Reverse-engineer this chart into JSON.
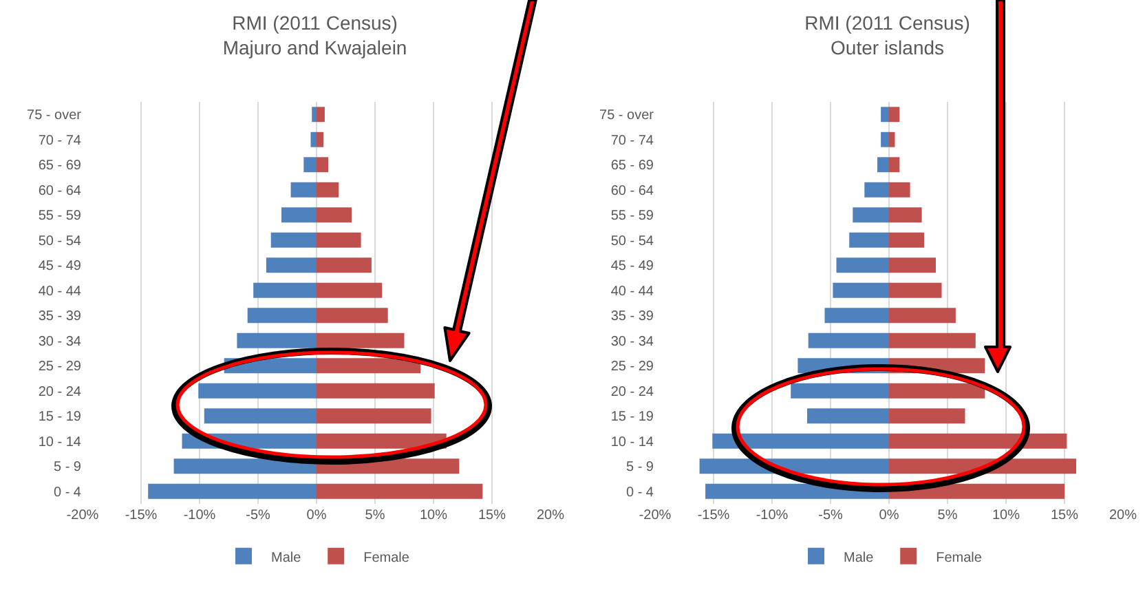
{
  "chart_data": [
    {
      "type": "bar",
      "orientation": "horizontal",
      "title": "RMI (2011 Census)",
      "subtitle": "Majuro and Kwajalein",
      "categories": [
        "75 - over",
        "70 - 74",
        "65 - 69",
        "60 - 64",
        "55 - 59",
        "50 - 54",
        "45 - 49",
        "40 - 44",
        "35 - 39",
        "30 - 34",
        "25 - 29",
        "20 - 24",
        "15 - 19",
        "10 - 14",
        "5 - 9",
        "0 - 4"
      ],
      "series": [
        {
          "name": "Male",
          "color": "#4f81bd",
          "values": [
            -0.4,
            -0.5,
            -1.1,
            -2.2,
            -3.0,
            -3.9,
            -4.3,
            -5.4,
            -5.9,
            -6.8,
            -7.9,
            -10.1,
            -9.6,
            -11.5,
            -12.2,
            -14.4
          ]
        },
        {
          "name": "Female",
          "color": "#c0504d",
          "values": [
            0.7,
            0.6,
            1.0,
            1.9,
            3.0,
            3.8,
            4.7,
            5.6,
            6.1,
            7.5,
            8.9,
            10.1,
            9.8,
            11.1,
            12.2,
            14.2
          ]
        }
      ],
      "xlim": [
        -20,
        20
      ],
      "xticks": [
        {
          "value": -20,
          "label": "-20%"
        },
        {
          "value": -15,
          "label": "-15%"
        },
        {
          "value": -10,
          "label": "-10%"
        },
        {
          "value": -5,
          "label": "-5%"
        },
        {
          "value": 0,
          "label": "0%"
        },
        {
          "value": 5,
          "label": "5%"
        },
        {
          "value": 10,
          "label": "10%"
        },
        {
          "value": 15,
          "label": "15%"
        },
        {
          "value": 20,
          "label": "20%"
        }
      ],
      "grid": "x",
      "legend": "bottom",
      "stacked": true
    },
    {
      "type": "bar",
      "orientation": "horizontal",
      "title": "RMI (2011 Census)",
      "subtitle": "Outer islands",
      "categories": [
        "75 - over",
        "70 - 74",
        "65 - 69",
        "60 - 64",
        "55 - 59",
        "50 - 54",
        "45 - 49",
        "40 - 44",
        "35 - 39",
        "30 - 34",
        "25 - 29",
        "20 - 24",
        "15 - 19",
        "10 - 14",
        "5 - 9",
        "0 - 4"
      ],
      "series": [
        {
          "name": "Male",
          "color": "#4f81bd",
          "values": [
            -0.7,
            -0.7,
            -1.0,
            -2.1,
            -3.1,
            -3.4,
            -4.5,
            -4.8,
            -5.5,
            -6.9,
            -7.8,
            -8.4,
            -7.0,
            -15.1,
            -16.2,
            -15.7
          ]
        },
        {
          "name": "Female",
          "color": "#c0504d",
          "values": [
            0.9,
            0.5,
            0.9,
            1.8,
            2.8,
            3.0,
            4.0,
            4.5,
            5.7,
            7.4,
            8.2,
            8.2,
            6.5,
            15.2,
            16.0,
            15.0
          ]
        }
      ],
      "xlim": [
        -20,
        20
      ],
      "xticks": [
        {
          "value": -20,
          "label": "-20%"
        },
        {
          "value": -15,
          "label": "-15%"
        },
        {
          "value": -10,
          "label": "-10%"
        },
        {
          "value": -5,
          "label": "-5%"
        },
        {
          "value": 0,
          "label": "0%"
        },
        {
          "value": 5,
          "label": "5%"
        },
        {
          "value": 10,
          "label": "10%"
        },
        {
          "value": 15,
          "label": "15%"
        },
        {
          "value": 20,
          "label": "20%"
        }
      ],
      "grid": "x",
      "legend": "bottom",
      "stacked": true
    }
  ]
}
